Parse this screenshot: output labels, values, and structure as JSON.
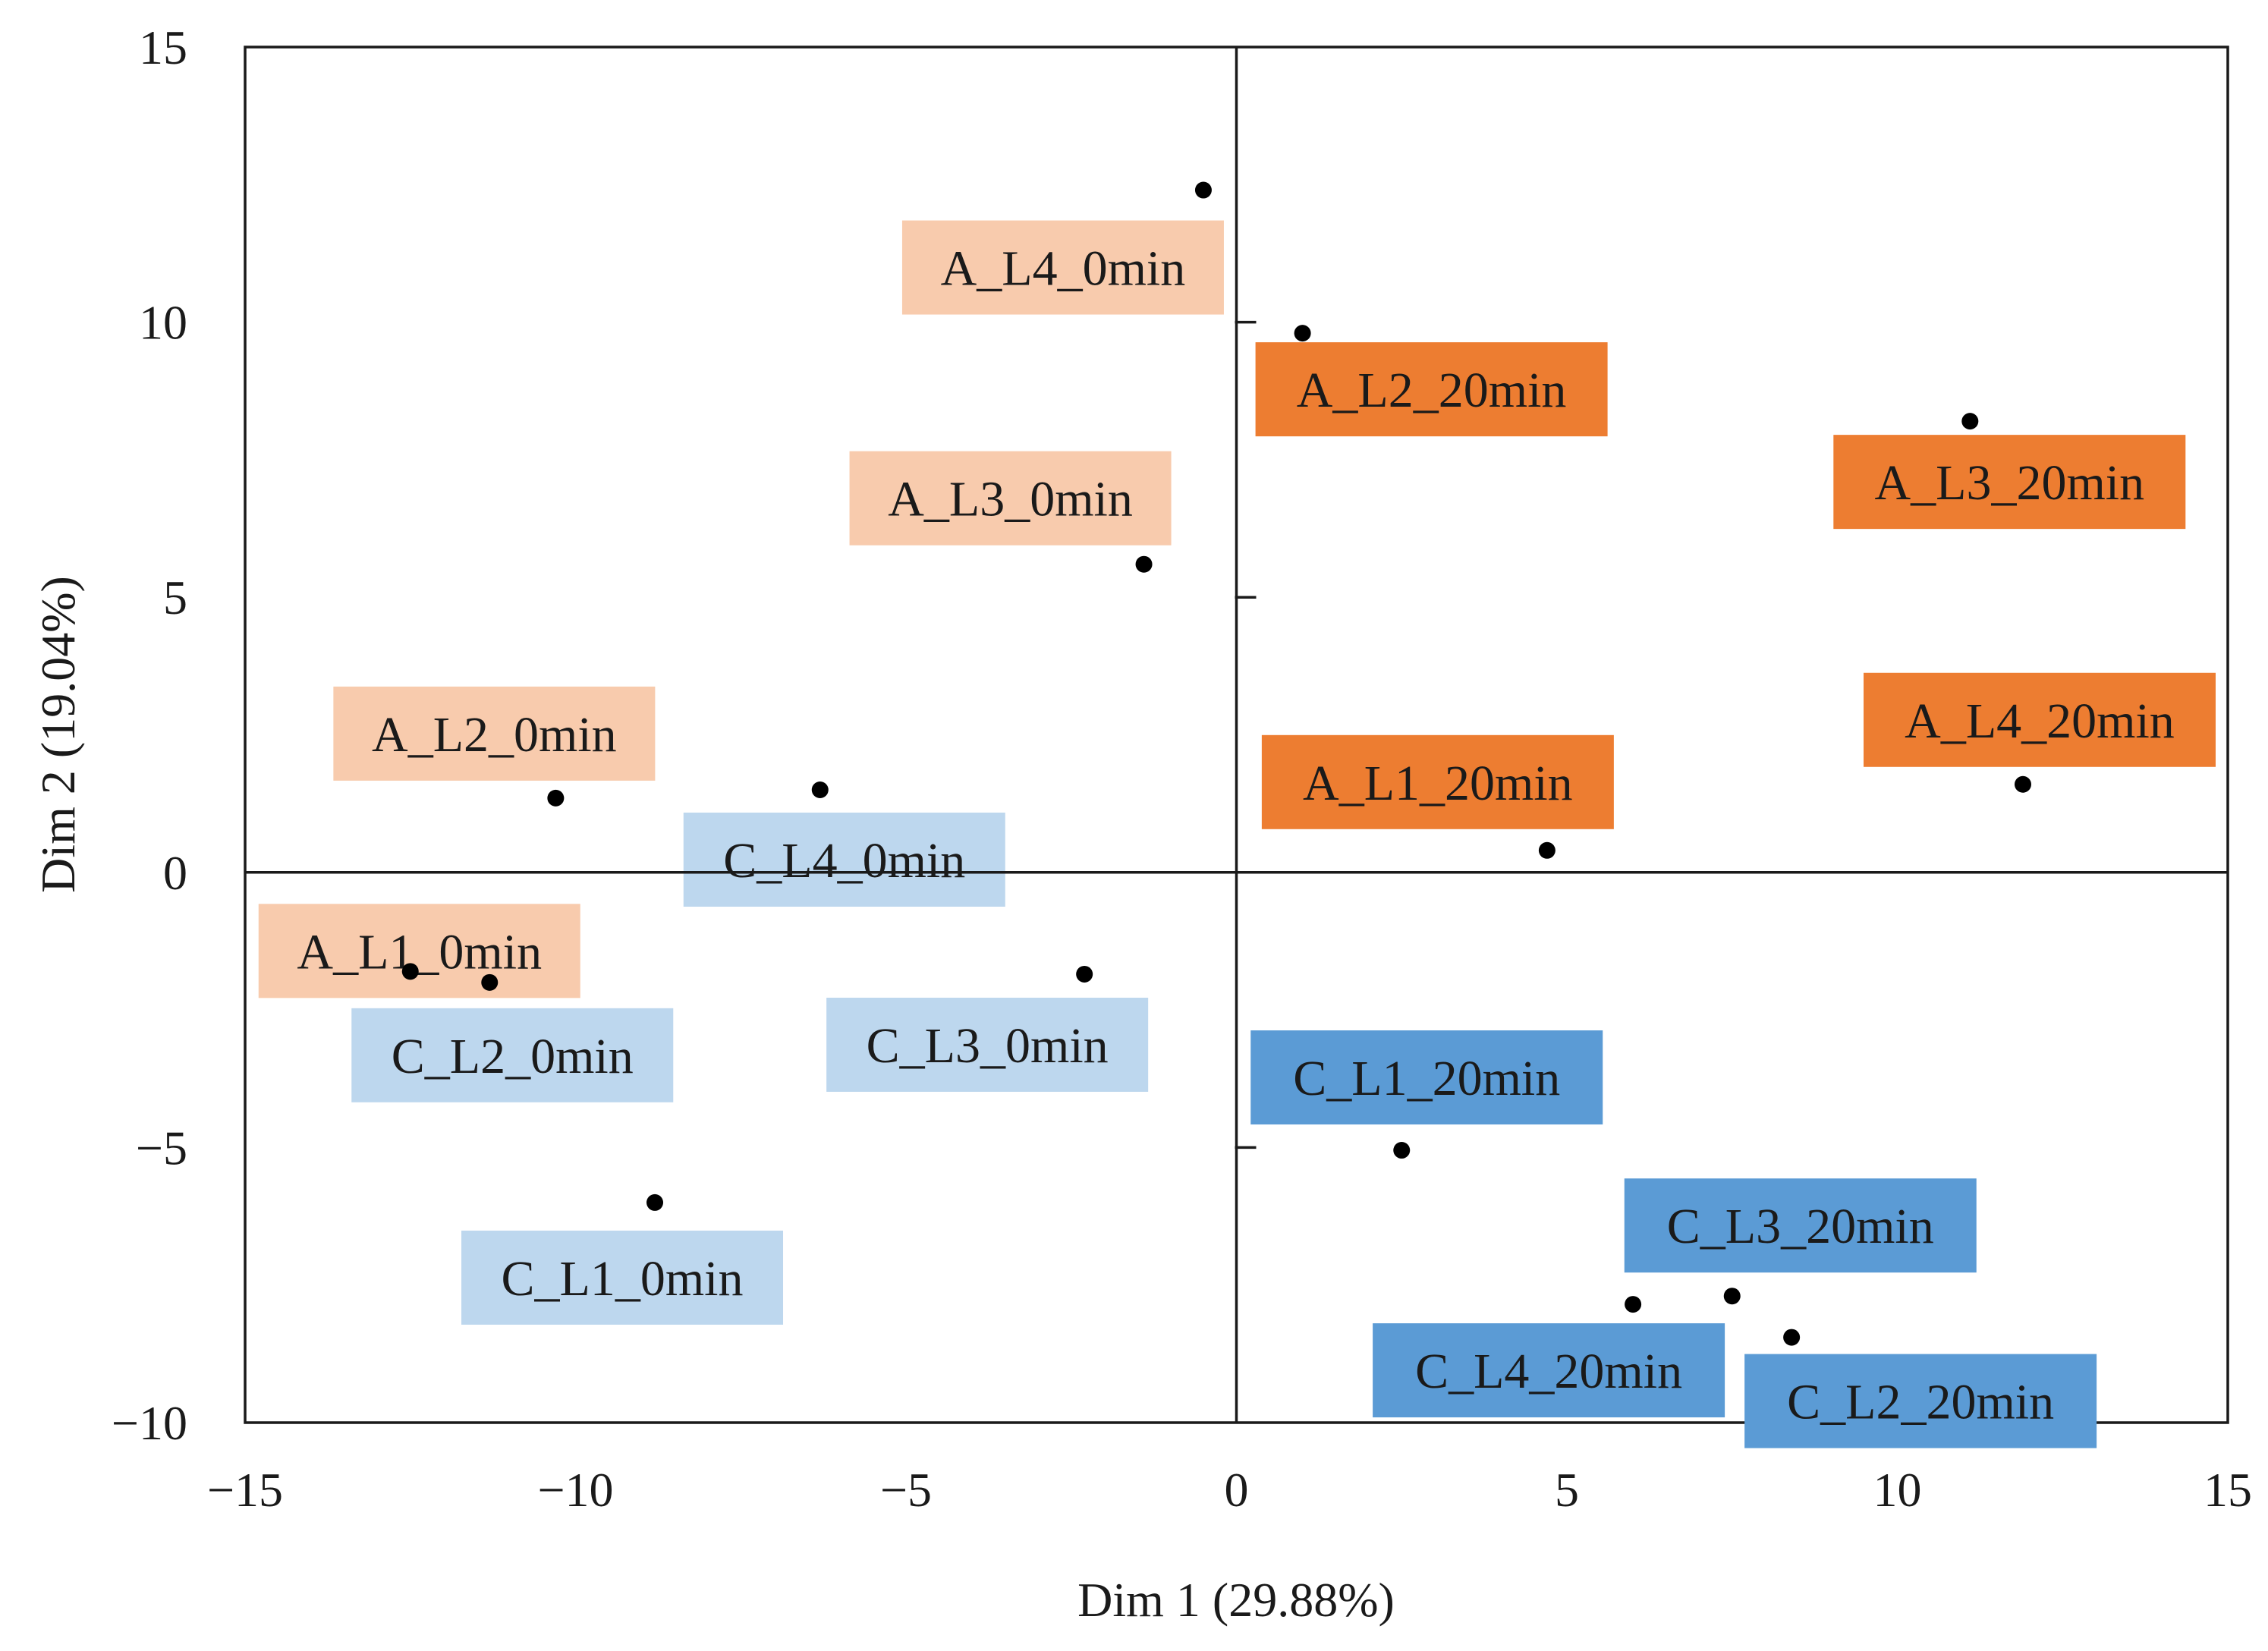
{
  "chart_data": {
    "type": "scatter",
    "title": "",
    "xlabel": "Dim 1 (29.88%)",
    "ylabel": "Dim 2 (19.04%)",
    "xlim": [
      -15,
      15
    ],
    "ylim": [
      -10,
      15
    ],
    "xticks": [
      -15,
      -10,
      -5,
      0,
      5,
      10,
      15
    ],
    "yticks": [
      -10,
      -5,
      0,
      5,
      10,
      15
    ],
    "xtick_labels": [
      "−15",
      "−10",
      "−5",
      "0",
      "5",
      "10",
      "15"
    ],
    "ytick_labels": [
      "−10",
      "−5",
      "0",
      "5",
      "10",
      "15"
    ],
    "grid": false,
    "colors": {
      "a_0min": "#f8cbad",
      "a_20min": "#ed7d31",
      "c_0min": "#bdd7ee",
      "c_20min": "#5b9bd5",
      "marker": "#000000"
    },
    "points": [
      {
        "label": "A_L1_0min",
        "x": -12.5,
        "y": -1.8,
        "group": "a_0min"
      },
      {
        "label": "A_L2_0min",
        "x": -10.3,
        "y": 1.35,
        "group": "a_0min"
      },
      {
        "label": "A_L3_0min",
        "x": -1.4,
        "y": 5.6,
        "group": "a_0min"
      },
      {
        "label": "A_L4_0min",
        "x": -0.5,
        "y": 12.4,
        "group": "a_0min"
      },
      {
        "label": "A_L1_20min",
        "x": 4.7,
        "y": 0.4,
        "group": "a_20min"
      },
      {
        "label": "A_L2_20min",
        "x": 1.0,
        "y": 9.8,
        "group": "a_20min"
      },
      {
        "label": "A_L3_20min",
        "x": 11.1,
        "y": 8.2,
        "group": "a_20min"
      },
      {
        "label": "A_L4_20min",
        "x": 11.9,
        "y": 1.6,
        "group": "a_20min"
      },
      {
        "label": "C_L1_0min",
        "x": -8.8,
        "y": -6.0,
        "group": "c_0min"
      },
      {
        "label": "C_L2_0min",
        "x": -11.3,
        "y": -2.0,
        "group": "c_0min"
      },
      {
        "label": "C_L3_0min",
        "x": -2.3,
        "y": -1.85,
        "group": "c_0min"
      },
      {
        "label": "C_L4_0min",
        "x": -6.3,
        "y": 1.5,
        "group": "c_0min"
      },
      {
        "label": "C_L1_20min",
        "x": 2.5,
        "y": -5.05,
        "group": "c_20min"
      },
      {
        "label": "C_L2_20min",
        "x": 8.4,
        "y": -8.45,
        "group": "c_20min"
      },
      {
        "label": "C_L3_20min",
        "x": 7.5,
        "y": -7.7,
        "group": "c_20min"
      },
      {
        "label": "C_L4_20min",
        "x": 6.0,
        "y": -7.85,
        "group": "c_20min"
      }
    ]
  }
}
